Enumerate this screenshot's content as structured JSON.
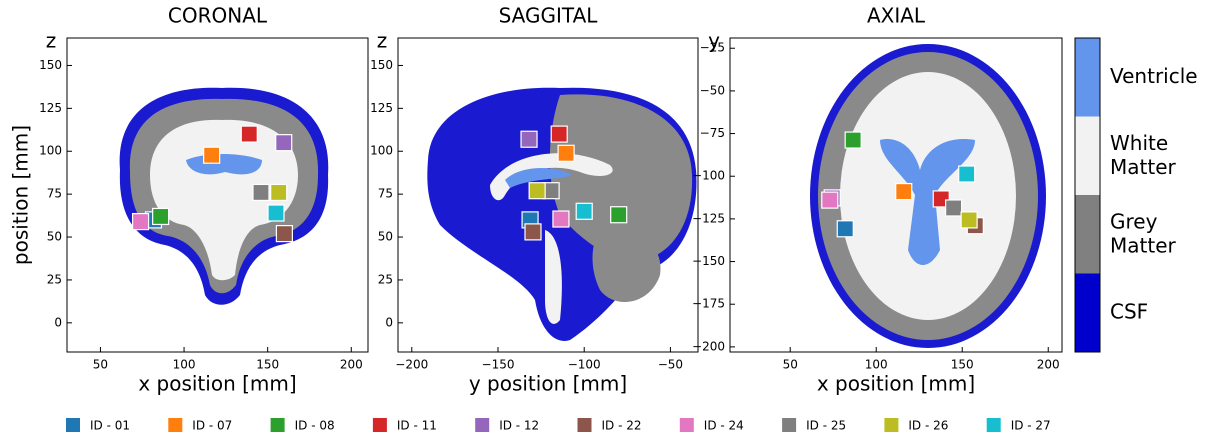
{
  "ylabel": "position [mm]",
  "legend": [
    {
      "name": "ID - 01",
      "color": "#1f77b4"
    },
    {
      "name": "ID - 07",
      "color": "#ff7f0e"
    },
    {
      "name": "ID - 08",
      "color": "#2ca02c"
    },
    {
      "name": "ID - 11",
      "color": "#d62728"
    },
    {
      "name": "ID - 12",
      "color": "#9467bd"
    },
    {
      "name": "ID - 22",
      "color": "#8c564b"
    },
    {
      "name": "ID - 24",
      "color": "#e377c2"
    },
    {
      "name": "ID - 25",
      "color": "#7f7f7f"
    },
    {
      "name": "ID - 26",
      "color": "#bcbd22"
    },
    {
      "name": "ID - 27",
      "color": "#17becf"
    }
  ],
  "colorbar": {
    "labels": [
      "CSF",
      "Grey Matter",
      "White Matter",
      "Ventricle"
    ],
    "colors": [
      "#0000cd",
      "#808080",
      "#f2f2f2",
      "#6495ed"
    ]
  },
  "chart_data": [
    {
      "type": "scatter",
      "title": "CORONAL",
      "xlabel": "x position [mm]",
      "ylabel": "z",
      "xlim": [
        30,
        210
      ],
      "ylim": [
        -17,
        166
      ],
      "xticks": [
        50,
        100,
        150,
        200
      ],
      "yticks": [
        0,
        25,
        50,
        75,
        100,
        125,
        150
      ],
      "x": [
        81.7,
        116.5,
        86,
        139,
        159.6,
        160,
        74,
        146,
        156.6,
        155
      ],
      "values": [
        60,
        97.7,
        62,
        110,
        105,
        52,
        59,
        76,
        76,
        64
      ]
    },
    {
      "type": "scatter",
      "title": "SAGGITAL",
      "xlabel": "y position [mm]",
      "ylabel": "z",
      "xlim": [
        -208,
        -34
      ],
      "ylim": [
        -17,
        166
      ],
      "xticks": [
        {
          "value": -200,
          "label": "−200"
        },
        {
          "value": -150,
          "label": "−150"
        },
        {
          "value": -100,
          "label": "−100"
        },
        {
          "value": -50,
          "label": "−50"
        }
      ],
      "yticks": [
        0,
        25,
        50,
        75,
        100,
        125,
        150
      ],
      "x": [
        -131.4,
        -110.5,
        -80,
        -114.5,
        -132,
        -129.7,
        -113.5,
        -119.2,
        -127.3,
        -100
      ],
      "values": [
        60,
        98.8,
        63,
        110,
        107,
        53,
        60.5,
        77,
        77,
        65
      ]
    },
    {
      "type": "scatter",
      "title": "AXIAL",
      "xlabel": "x position [mm]",
      "ylabel": "y",
      "xlim": [
        15,
        208
      ],
      "ylim": [
        -203,
        -19
      ],
      "xticks": [
        50,
        100,
        150,
        200
      ],
      "yticks": [
        {
          "value": -25,
          "label": "−25"
        },
        {
          "value": -50,
          "label": "−50"
        },
        {
          "value": -75,
          "label": "−75"
        },
        {
          "value": -100,
          "label": "−100"
        },
        {
          "value": -125,
          "label": "−125"
        },
        {
          "value": -150,
          "label": "−150"
        },
        {
          "value": -175,
          "label": "−175"
        },
        {
          "value": -200,
          "label": "−200"
        }
      ],
      "x": [
        82,
        116,
        86.6,
        137.8,
        74.4,
        157.6,
        73,
        145,
        154,
        152.6
      ],
      "values": [
        -130.8,
        -109,
        -78.8,
        -113.3,
        -112.7,
        -129,
        -114,
        -118.6,
        -125.6,
        -98.7
      ]
    }
  ]
}
